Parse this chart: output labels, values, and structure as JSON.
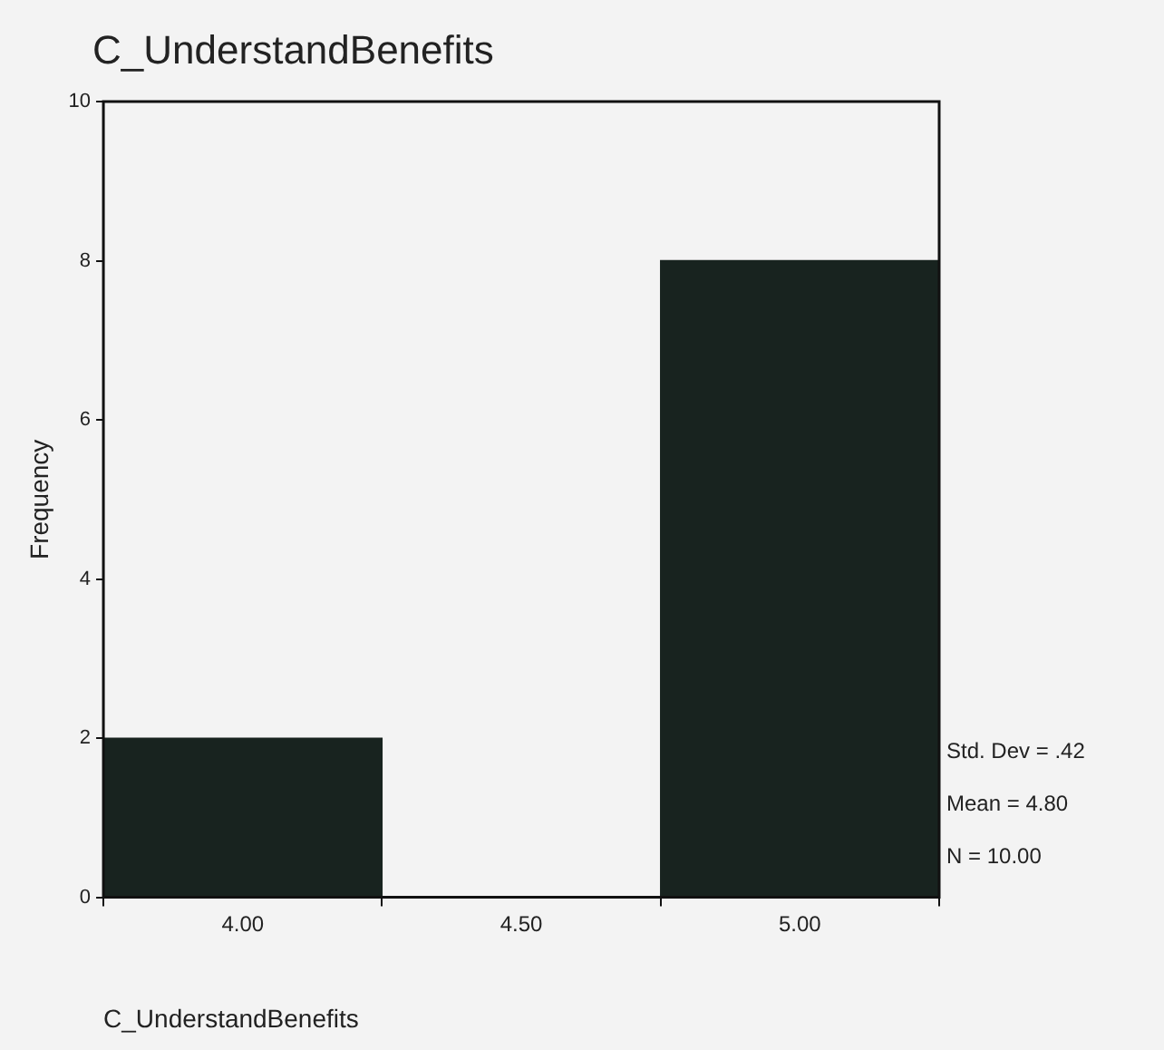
{
  "chart_data": {
    "type": "histogram",
    "title": "C_UnderstandBenefits",
    "xlabel": "C_UnderstandBenefits",
    "ylabel": "Frequency",
    "bins": [
      3.75,
      4.25,
      4.75,
      5.25
    ],
    "values": [
      2,
      0,
      8
    ],
    "color": "#18231f",
    "xlim": [
      3.75,
      5.25
    ],
    "xticks": [
      {
        "value": 4,
        "label": "4.00"
      },
      {
        "value": 4.5,
        "label": "4.50"
      },
      {
        "value": 5,
        "label": "5.00"
      }
    ],
    "ylim": [
      0,
      10
    ],
    "yticks": [
      0,
      2,
      4,
      6,
      8,
      10
    ],
    "grid": false,
    "legend": false,
    "annotations": [
      "Std. Dev = .42",
      "Mean = 4.80",
      "N = 10.00"
    ]
  }
}
